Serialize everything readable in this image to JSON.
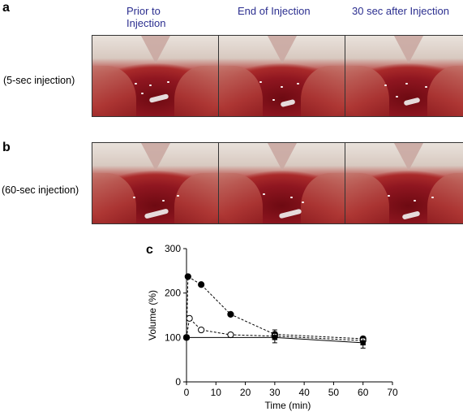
{
  "panels": {
    "a": "a",
    "b": "b",
    "c": "c"
  },
  "column_headers": [
    "Prior to\nInjection",
    "End of Injection",
    "30 sec after Injection"
  ],
  "row_labels": [
    "(5-sec injection)",
    "(60-sec injection)"
  ],
  "chart_data": {
    "type": "line",
    "xlabel": "Time (min)",
    "ylabel": "Volume (%)",
    "xlim": [
      0,
      70
    ],
    "ylim": [
      0,
      300
    ],
    "xticks": [
      0,
      10,
      20,
      30,
      40,
      50,
      60,
      70
    ],
    "yticks": [
      0,
      100,
      200,
      300
    ],
    "grid": false,
    "series": [
      {
        "marker": "filled-circle",
        "linestyle": "dashed",
        "x": [
          0,
          0.5,
          5,
          15,
          30,
          60
        ],
        "y": [
          100,
          237,
          219,
          152,
          107,
          97
        ],
        "err": [
          0,
          0,
          0,
          0,
          10,
          5
        ]
      },
      {
        "marker": "open-circle",
        "linestyle": "dashed",
        "x": [
          0,
          1,
          5,
          15,
          30,
          60
        ],
        "y": [
          100,
          143,
          117,
          106,
          103,
          93
        ],
        "err": [
          0,
          0,
          0,
          0,
          0,
          0
        ]
      },
      {
        "marker": "filled-square",
        "linestyle": "solid",
        "x": [
          0,
          30,
          60
        ],
        "y": [
          100,
          100,
          88
        ],
        "err": [
          0,
          12,
          12
        ]
      }
    ]
  }
}
